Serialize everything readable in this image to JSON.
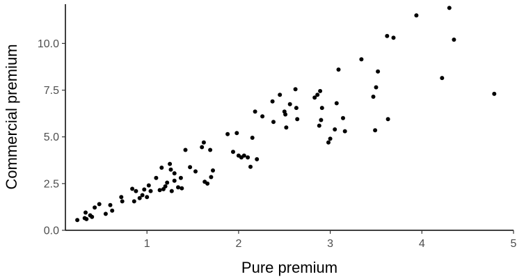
{
  "chart_data": {
    "type": "scatter",
    "title": "",
    "xlabel": "Pure premium",
    "ylabel": "Commercial premium",
    "xlim": [
      0.11,
      5.0
    ],
    "ylim": [
      0.0,
      12.1
    ],
    "xticks": [
      1,
      2,
      3,
      4,
      5
    ],
    "xtick_labels": [
      "1",
      "2",
      "3",
      "4",
      "5"
    ],
    "yticks": [
      0.0,
      2.5,
      5.0,
      7.5,
      10.0
    ],
    "ytick_labels": [
      "0.0",
      "2.5",
      "5.0",
      "7.5",
      "10.0"
    ],
    "grid": false,
    "legend": "none",
    "point_color": "#000000",
    "points": [
      [
        0.24,
        0.55
      ],
      [
        0.32,
        0.65
      ],
      [
        0.33,
        0.95
      ],
      [
        0.34,
        0.6
      ],
      [
        0.38,
        0.8
      ],
      [
        0.4,
        0.72
      ],
      [
        0.43,
        1.22
      ],
      [
        0.48,
        1.4
      ],
      [
        0.55,
        0.88
      ],
      [
        0.6,
        1.35
      ],
      [
        0.62,
        1.05
      ],
      [
        0.72,
        1.78
      ],
      [
        0.73,
        1.55
      ],
      [
        0.84,
        2.22
      ],
      [
        0.86,
        1.55
      ],
      [
        0.88,
        2.1
      ],
      [
        0.92,
        1.72
      ],
      [
        0.95,
        1.88
      ],
      [
        0.97,
        2.18
      ],
      [
        1.0,
        1.78
      ],
      [
        1.02,
        2.4
      ],
      [
        1.04,
        2.1
      ],
      [
        1.1,
        2.8
      ],
      [
        1.14,
        2.15
      ],
      [
        1.16,
        3.35
      ],
      [
        1.18,
        2.2
      ],
      [
        1.2,
        2.35
      ],
      [
        1.22,
        2.55
      ],
      [
        1.25,
        3.55
      ],
      [
        1.26,
        3.25
      ],
      [
        1.27,
        2.1
      ],
      [
        1.3,
        3.05
      ],
      [
        1.3,
        2.65
      ],
      [
        1.34,
        2.3
      ],
      [
        1.37,
        2.8
      ],
      [
        1.38,
        2.25
      ],
      [
        1.42,
        4.3
      ],
      [
        1.47,
        3.38
      ],
      [
        1.53,
        3.15
      ],
      [
        1.6,
        4.45
      ],
      [
        1.62,
        4.7
      ],
      [
        1.63,
        2.6
      ],
      [
        1.66,
        2.5
      ],
      [
        1.69,
        4.3
      ],
      [
        1.7,
        2.85
      ],
      [
        1.72,
        3.2
      ],
      [
        1.88,
        5.15
      ],
      [
        1.94,
        4.2
      ],
      [
        1.98,
        5.2
      ],
      [
        2.0,
        4.0
      ],
      [
        2.03,
        3.9
      ],
      [
        2.06,
        4.0
      ],
      [
        2.1,
        3.9
      ],
      [
        2.13,
        3.4
      ],
      [
        2.15,
        4.95
      ],
      [
        2.18,
        6.35
      ],
      [
        2.2,
        3.8
      ],
      [
        2.26,
        6.1
      ],
      [
        2.37,
        6.9
      ],
      [
        2.38,
        5.8
      ],
      [
        2.45,
        7.25
      ],
      [
        2.5,
        6.35
      ],
      [
        2.51,
        6.2
      ],
      [
        2.52,
        5.5
      ],
      [
        2.56,
        6.75
      ],
      [
        2.62,
        7.55
      ],
      [
        2.63,
        6.55
      ],
      [
        2.64,
        5.95
      ],
      [
        2.83,
        7.1
      ],
      [
        2.86,
        7.25
      ],
      [
        2.88,
        5.6
      ],
      [
        2.89,
        7.45
      ],
      [
        2.9,
        5.9
      ],
      [
        2.91,
        6.55
      ],
      [
        2.98,
        4.7
      ],
      [
        3.0,
        4.9
      ],
      [
        3.05,
        5.4
      ],
      [
        3.07,
        6.8
      ],
      [
        3.09,
        8.6
      ],
      [
        3.14,
        6.0
      ],
      [
        3.16,
        5.3
      ],
      [
        3.34,
        9.15
      ],
      [
        3.47,
        7.15
      ],
      [
        3.49,
        5.35
      ],
      [
        3.5,
        7.65
      ],
      [
        3.52,
        8.5
      ],
      [
        3.62,
        10.4
      ],
      [
        3.63,
        5.95
      ],
      [
        3.69,
        10.3
      ],
      [
        3.94,
        11.5
      ],
      [
        4.22,
        8.15
      ],
      [
        4.3,
        11.9
      ],
      [
        4.35,
        10.2
      ],
      [
        4.79,
        7.3
      ]
    ]
  }
}
